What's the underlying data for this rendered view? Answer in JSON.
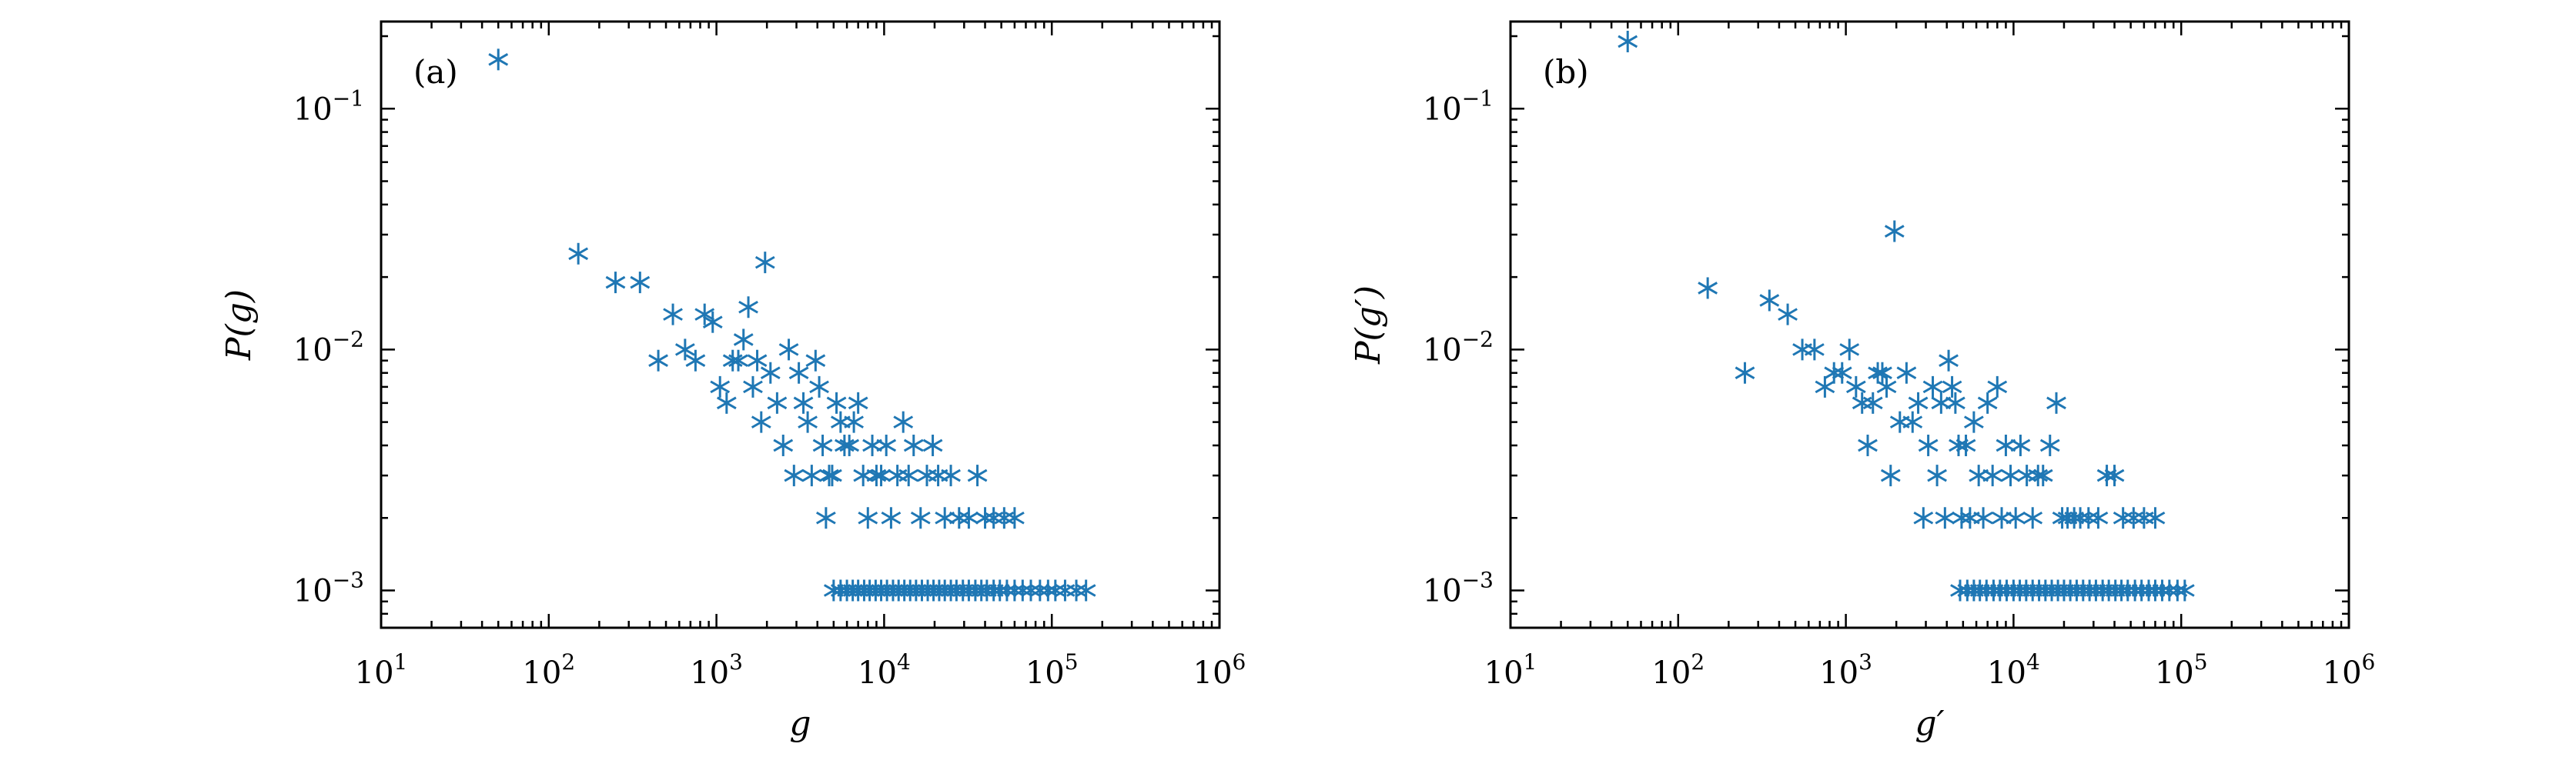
{
  "colors": {
    "marker": "#1f77b4",
    "axes": "#000000"
  },
  "chart_data": [
    {
      "type": "scatter",
      "panel_label": "(a)",
      "xlabel": "g",
      "ylabel": "P(g)",
      "xscale": "log",
      "yscale": "log",
      "xlim": [
        10,
        1000000
      ],
      "ylim": [
        0.0007,
        0.23
      ],
      "x_ticks": [
        10,
        100,
        1000,
        10000,
        100000,
        1000000
      ],
      "x_tick_labels": [
        {
          "base": "10",
          "exp": "1"
        },
        {
          "base": "10",
          "exp": "2"
        },
        {
          "base": "10",
          "exp": "3"
        },
        {
          "base": "10",
          "exp": "4"
        },
        {
          "base": "10",
          "exp": "5"
        },
        {
          "base": "10",
          "exp": "6"
        }
      ],
      "y_ticks": [
        0.1,
        0.01,
        0.001
      ],
      "y_tick_labels": [
        {
          "base": "10",
          "exp": "−1"
        },
        {
          "base": "10",
          "exp": "−2"
        },
        {
          "base": "10",
          "exp": "−3"
        }
      ],
      "marker": "asterisk",
      "points": [
        [
          50,
          0.16
        ],
        [
          150,
          0.025
        ],
        [
          250,
          0.019
        ],
        [
          350,
          0.019
        ],
        [
          450,
          0.009
        ],
        [
          550,
          0.014
        ],
        [
          650,
          0.01
        ],
        [
          750,
          0.009
        ],
        [
          850,
          0.014
        ],
        [
          950,
          0.013
        ],
        [
          1050,
          0.007
        ],
        [
          1150,
          0.006
        ],
        [
          1250,
          0.009
        ],
        [
          1350,
          0.009
        ],
        [
          1450,
          0.011
        ],
        [
          1550,
          0.015
        ],
        [
          1650,
          0.007
        ],
        [
          1750,
          0.009
        ],
        [
          1850,
          0.005
        ],
        [
          1950,
          0.023
        ],
        [
          2100,
          0.008
        ],
        [
          2300,
          0.006
        ],
        [
          2500,
          0.004
        ],
        [
          2700,
          0.01
        ],
        [
          2900,
          0.003
        ],
        [
          3100,
          0.008
        ],
        [
          3300,
          0.006
        ],
        [
          3500,
          0.005
        ],
        [
          3700,
          0.003
        ],
        [
          3900,
          0.009
        ],
        [
          4100,
          0.007
        ],
        [
          4300,
          0.004
        ],
        [
          4500,
          0.002
        ],
        [
          4700,
          0.003
        ],
        [
          4900,
          0.003
        ],
        [
          5200,
          0.006
        ],
        [
          5500,
          0.005
        ],
        [
          5800,
          0.004
        ],
        [
          6200,
          0.004
        ],
        [
          6600,
          0.005
        ],
        [
          7000,
          0.006
        ],
        [
          7500,
          0.003
        ],
        [
          8000,
          0.002
        ],
        [
          8500,
          0.004
        ],
        [
          9000,
          0.003
        ],
        [
          9600,
          0.003
        ],
        [
          10300,
          0.004
        ],
        [
          11000,
          0.002
        ],
        [
          12000,
          0.003
        ],
        [
          13000,
          0.005
        ],
        [
          14000,
          0.003
        ],
        [
          15000,
          0.004
        ],
        [
          16500,
          0.002
        ],
        [
          18000,
          0.003
        ],
        [
          19500,
          0.004
        ],
        [
          21000,
          0.003
        ],
        [
          23000,
          0.002
        ],
        [
          25000,
          0.003
        ],
        [
          28000,
          0.002
        ],
        [
          32000,
          0.002
        ],
        [
          36000,
          0.003
        ],
        [
          40000,
          0.002
        ],
        [
          45000,
          0.002
        ],
        [
          52000,
          0.002
        ],
        [
          60000,
          0.002
        ],
        [
          5000,
          0.001
        ],
        [
          5500,
          0.001
        ],
        [
          6000,
          0.001
        ],
        [
          6500,
          0.001
        ],
        [
          7000,
          0.001
        ],
        [
          7600,
          0.001
        ],
        [
          8200,
          0.001
        ],
        [
          8900,
          0.001
        ],
        [
          9600,
          0.001
        ],
        [
          10400,
          0.001
        ],
        [
          11300,
          0.001
        ],
        [
          12200,
          0.001
        ],
        [
          13200,
          0.001
        ],
        [
          14300,
          0.001
        ],
        [
          15500,
          0.001
        ],
        [
          16800,
          0.001
        ],
        [
          18200,
          0.001
        ],
        [
          19700,
          0.001
        ],
        [
          21300,
          0.001
        ],
        [
          23000,
          0.001
        ],
        [
          25000,
          0.001
        ],
        [
          27000,
          0.001
        ],
        [
          29500,
          0.001
        ],
        [
          32000,
          0.001
        ],
        [
          35000,
          0.001
        ],
        [
          38000,
          0.001
        ],
        [
          41000,
          0.001
        ],
        [
          45000,
          0.001
        ],
        [
          49000,
          0.001
        ],
        [
          54000,
          0.001
        ],
        [
          60000,
          0.001
        ],
        [
          67000,
          0.001
        ],
        [
          75000,
          0.001
        ],
        [
          85000,
          0.001
        ],
        [
          95000,
          0.001
        ],
        [
          105000,
          0.001
        ],
        [
          120000,
          0.001
        ],
        [
          140000,
          0.001
        ],
        [
          160000,
          0.001
        ]
      ]
    },
    {
      "type": "scatter",
      "panel_label": "(b)",
      "xlabel": "g′",
      "ylabel": "P(g′)",
      "xscale": "log",
      "yscale": "log",
      "xlim": [
        10,
        1000000
      ],
      "ylim": [
        0.0007,
        0.23
      ],
      "x_ticks": [
        10,
        100,
        1000,
        10000,
        100000,
        1000000
      ],
      "x_tick_labels": [
        {
          "base": "10",
          "exp": "1"
        },
        {
          "base": "10",
          "exp": "2"
        },
        {
          "base": "10",
          "exp": "3"
        },
        {
          "base": "10",
          "exp": "4"
        },
        {
          "base": "10",
          "exp": "5"
        },
        {
          "base": "10",
          "exp": "6"
        }
      ],
      "y_ticks": [
        0.1,
        0.01,
        0.001
      ],
      "y_tick_labels": [
        {
          "base": "10",
          "exp": "−1"
        },
        {
          "base": "10",
          "exp": "−2"
        },
        {
          "base": "10",
          "exp": "−3"
        }
      ],
      "marker": "asterisk",
      "points": [
        [
          50,
          0.19
        ],
        [
          150,
          0.018
        ],
        [
          250,
          0.008
        ],
        [
          350,
          0.016
        ],
        [
          450,
          0.014
        ],
        [
          550,
          0.01
        ],
        [
          650,
          0.01
        ],
        [
          750,
          0.007
        ],
        [
          850,
          0.008
        ],
        [
          950,
          0.008
        ],
        [
          1050,
          0.01
        ],
        [
          1150,
          0.007
        ],
        [
          1250,
          0.006
        ],
        [
          1350,
          0.004
        ],
        [
          1450,
          0.006
        ],
        [
          1550,
          0.008
        ],
        [
          1650,
          0.008
        ],
        [
          1750,
          0.007
        ],
        [
          1850,
          0.003
        ],
        [
          1950,
          0.031
        ],
        [
          2100,
          0.005
        ],
        [
          2300,
          0.008
        ],
        [
          2500,
          0.005
        ],
        [
          2700,
          0.006
        ],
        [
          2900,
          0.002
        ],
        [
          3100,
          0.004
        ],
        [
          3300,
          0.007
        ],
        [
          3500,
          0.003
        ],
        [
          3700,
          0.006
        ],
        [
          3900,
          0.002
        ],
        [
          4100,
          0.009
        ],
        [
          4300,
          0.007
        ],
        [
          4500,
          0.006
        ],
        [
          4700,
          0.004
        ],
        [
          4900,
          0.002
        ],
        [
          5200,
          0.004
        ],
        [
          5500,
          0.002
        ],
        [
          5800,
          0.005
        ],
        [
          6200,
          0.003
        ],
        [
          6600,
          0.002
        ],
        [
          7000,
          0.006
        ],
        [
          7500,
          0.003
        ],
        [
          8000,
          0.007
        ],
        [
          8500,
          0.002
        ],
        [
          9000,
          0.004
        ],
        [
          9600,
          0.003
        ],
        [
          10300,
          0.002
        ],
        [
          11000,
          0.004
        ],
        [
          12000,
          0.003
        ],
        [
          13000,
          0.002
        ],
        [
          14000,
          0.003
        ],
        [
          15000,
          0.003
        ],
        [
          16500,
          0.004
        ],
        [
          18000,
          0.006
        ],
        [
          19500,
          0.002
        ],
        [
          21000,
          0.002
        ],
        [
          23000,
          0.002
        ],
        [
          25000,
          0.002
        ],
        [
          28000,
          0.002
        ],
        [
          32000,
          0.002
        ],
        [
          36000,
          0.003
        ],
        [
          40000,
          0.003
        ],
        [
          45000,
          0.002
        ],
        [
          52000,
          0.002
        ],
        [
          60000,
          0.002
        ],
        [
          70000,
          0.002
        ],
        [
          4800,
          0.001
        ],
        [
          5300,
          0.001
        ],
        [
          5800,
          0.001
        ],
        [
          6300,
          0.001
        ],
        [
          6900,
          0.001
        ],
        [
          7600,
          0.001
        ],
        [
          8300,
          0.001
        ],
        [
          9100,
          0.001
        ],
        [
          10000,
          0.001
        ],
        [
          10900,
          0.001
        ],
        [
          11900,
          0.001
        ],
        [
          13000,
          0.001
        ],
        [
          14200,
          0.001
        ],
        [
          15500,
          0.001
        ],
        [
          16900,
          0.001
        ],
        [
          18400,
          0.001
        ],
        [
          20000,
          0.001
        ],
        [
          21800,
          0.001
        ],
        [
          23800,
          0.001
        ],
        [
          26000,
          0.001
        ],
        [
          28400,
          0.001
        ],
        [
          31000,
          0.001
        ],
        [
          34000,
          0.001
        ],
        [
          37000,
          0.001
        ],
        [
          40500,
          0.001
        ],
        [
          44000,
          0.001
        ],
        [
          48000,
          0.001
        ],
        [
          53000,
          0.001
        ],
        [
          58000,
          0.001
        ],
        [
          64000,
          0.001
        ],
        [
          70000,
          0.001
        ],
        [
          77000,
          0.001
        ],
        [
          85000,
          0.001
        ],
        [
          95000,
          0.001
        ],
        [
          105000,
          0.001
        ]
      ]
    }
  ]
}
